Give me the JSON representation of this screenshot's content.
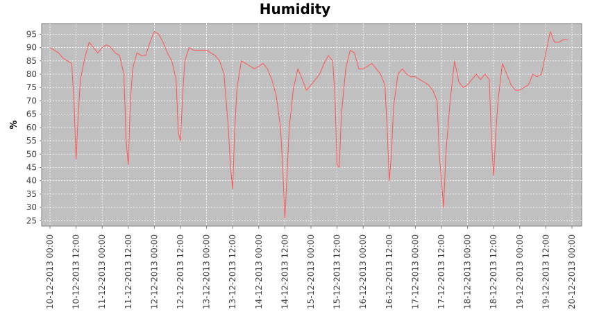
{
  "chart_data": {
    "type": "line",
    "title": "Humidity",
    "xlabel": "",
    "ylabel": "%",
    "ylim": [
      23,
      99
    ],
    "y_ticks": [
      25,
      30,
      35,
      40,
      45,
      50,
      55,
      60,
      65,
      70,
      75,
      80,
      85,
      90,
      95
    ],
    "x_tick_labels": [
      "10-12-2013 00:00",
      "10-12-2013 12:00",
      "11-12-2013 00:00",
      "11-12-2013 12:00",
      "12-12-2013 00:00",
      "12-12-2013 12:00",
      "13-12-2013 00:00",
      "13-12-2013 12:00",
      "14-12-2013 00:00",
      "14-12-2013 12:00",
      "15-12-2013 00:00",
      "15-12-2013 12:00",
      "16-12-2013 00:00",
      "16-12-2013 12:00",
      "17-12-2013 00:00",
      "17-12-2013 12:00",
      "18-12-2013 00:00",
      "18-12-2013 12:00",
      "19-12-2013 00:00",
      "19-12-2013 12:00",
      "20-12-2013 00:00"
    ],
    "grid": true,
    "colors": {
      "line": "#ff5555",
      "plot_background": "#c0c0c0",
      "grid": "#ffffff"
    },
    "series": [
      {
        "x": [
          "10-12-2013 00:00",
          "10-12-2013 02:00",
          "10-12-2013 04:00",
          "10-12-2013 06:00",
          "10-12-2013 08:00",
          "10-12-2013 10:00",
          "10-12-2013 11:00",
          "10-12-2013 12:00",
          "10-12-2013 13:00",
          "10-12-2013 14:00",
          "10-12-2013 16:00",
          "10-12-2013 18:00",
          "10-12-2013 20:00",
          "10-12-2013 22:00",
          "11-12-2013 00:00",
          "11-12-2013 02:00",
          "11-12-2013 04:00",
          "11-12-2013 06:00",
          "11-12-2013 08:00",
          "11-12-2013 10:00",
          "11-12-2013 11:00",
          "11-12-2013 12:00",
          "11-12-2013 13:00",
          "11-12-2013 14:00",
          "11-12-2013 16:00",
          "11-12-2013 18:00",
          "11-12-2013 20:00",
          "11-12-2013 22:00",
          "12-12-2013 00:00",
          "12-12-2013 02:00",
          "12-12-2013 04:00",
          "12-12-2013 06:00",
          "12-12-2013 08:00",
          "12-12-2013 10:00",
          "12-12-2013 11:00",
          "12-12-2013 12:00",
          "12-12-2013 13:00",
          "12-12-2013 14:00",
          "12-12-2013 16:00",
          "12-12-2013 18:00",
          "12-12-2013 20:00",
          "12-12-2013 22:00",
          "13-12-2013 00:00",
          "13-12-2013 02:00",
          "13-12-2013 04:00",
          "13-12-2013 06:00",
          "13-12-2013 08:00",
          "13-12-2013 10:00",
          "13-12-2013 11:00",
          "13-12-2013 12:00",
          "13-12-2013 13:00",
          "13-12-2013 14:00",
          "13-12-2013 16:00",
          "13-12-2013 18:00",
          "13-12-2013 20:00",
          "13-12-2013 22:00",
          "14-12-2013 00:00",
          "14-12-2013 02:00",
          "14-12-2013 04:00",
          "14-12-2013 06:00",
          "14-12-2013 08:00",
          "14-12-2013 10:00",
          "14-12-2013 11:00",
          "14-12-2013 12:00",
          "14-12-2013 13:00",
          "14-12-2013 14:00",
          "14-12-2013 16:00",
          "14-12-2013 18:00",
          "14-12-2013 20:00",
          "14-12-2013 22:00",
          "15-12-2013 00:00",
          "15-12-2013 02:00",
          "15-12-2013 04:00",
          "15-12-2013 06:00",
          "15-12-2013 08:00",
          "15-12-2013 10:00",
          "15-12-2013 11:00",
          "15-12-2013 12:00",
          "15-12-2013 13:00",
          "15-12-2013 14:00",
          "15-12-2013 16:00",
          "15-12-2013 18:00",
          "15-12-2013 20:00",
          "15-12-2013 22:00",
          "16-12-2013 00:00",
          "16-12-2013 02:00",
          "16-12-2013 04:00",
          "16-12-2013 06:00",
          "16-12-2013 08:00",
          "16-12-2013 10:00",
          "16-12-2013 11:00",
          "16-12-2013 12:00",
          "16-12-2013 13:00",
          "16-12-2013 14:00",
          "16-12-2013 16:00",
          "16-12-2013 18:00",
          "16-12-2013 20:00",
          "16-12-2013 22:00",
          "17-12-2013 00:00",
          "17-12-2013 02:00",
          "17-12-2013 04:00",
          "17-12-2013 06:00",
          "17-12-2013 08:00",
          "17-12-2013 10:00",
          "17-12-2013 11:00",
          "17-12-2013 12:00",
          "17-12-2013 13:00",
          "17-12-2013 14:00",
          "17-12-2013 16:00",
          "17-12-2013 18:00",
          "17-12-2013 20:00",
          "17-12-2013 22:00",
          "18-12-2013 00:00",
          "18-12-2013 02:00",
          "18-12-2013 04:00",
          "18-12-2013 06:00",
          "18-12-2013 08:00",
          "18-12-2013 10:00",
          "18-12-2013 11:00",
          "18-12-2013 12:00",
          "18-12-2013 13:00",
          "18-12-2013 14:00",
          "18-12-2013 16:00",
          "18-12-2013 18:00",
          "18-12-2013 20:00",
          "18-12-2013 22:00",
          "19-12-2013 00:00",
          "19-12-2013 02:00",
          "19-12-2013 04:00",
          "19-12-2013 06:00",
          "19-12-2013 08:00",
          "19-12-2013 10:00",
          "19-12-2013 12:00",
          "19-12-2013 14:00",
          "19-12-2013 16:00",
          "19-12-2013 18:00",
          "19-12-2013 20:00",
          "19-12-2013 22:00"
        ],
        "y": [
          90,
          89,
          88,
          86,
          85,
          84,
          70,
          48,
          65,
          78,
          86,
          92,
          90,
          88,
          90,
          91,
          90,
          88,
          87,
          80,
          55,
          46,
          70,
          82,
          88,
          87,
          87,
          92,
          96,
          95,
          92,
          88,
          85,
          78,
          58,
          55,
          72,
          85,
          90,
          89,
          89,
          89,
          89,
          88,
          87,
          85,
          80,
          60,
          45,
          37,
          60,
          75,
          85,
          84,
          83,
          82,
          83,
          84,
          82,
          78,
          72,
          60,
          45,
          26,
          42,
          60,
          75,
          82,
          78,
          74,
          76,
          78,
          80,
          84,
          87,
          85,
          72,
          46,
          45,
          65,
          82,
          89,
          88,
          82,
          82,
          83,
          84,
          82,
          80,
          76,
          60,
          40,
          50,
          68,
          80,
          82,
          80,
          79,
          79,
          78,
          77,
          76,
          74,
          70,
          50,
          40,
          30,
          50,
          70,
          85,
          77,
          75,
          76,
          78,
          80,
          78,
          80,
          78,
          55,
          42,
          58,
          70,
          84,
          80,
          76,
          74,
          74,
          75,
          76,
          80,
          79,
          80,
          88,
          96,
          92,
          92,
          93,
          93
        ]
      }
    ]
  }
}
